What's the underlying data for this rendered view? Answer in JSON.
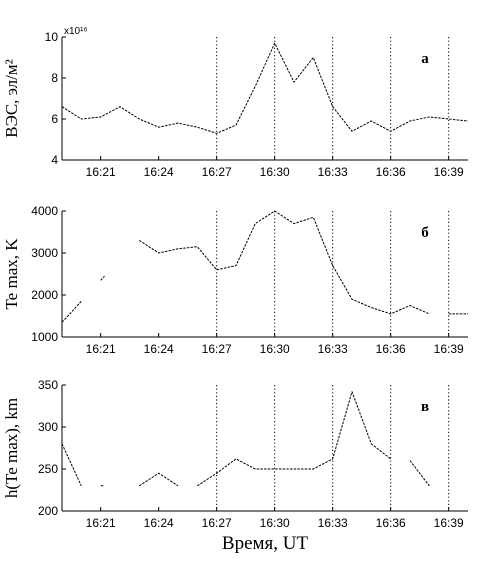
{
  "chart_data": [
    {
      "type": "line",
      "panel_label": "а",
      "ylabel": "ВЭС, эл/м²",
      "y_multiplier": "x10¹⁶",
      "ylim": [
        4,
        10
      ],
      "yticks": [
        4,
        6,
        8,
        10
      ],
      "xlim": [
        "16:19",
        "16:40"
      ],
      "xticks": [
        "16:21",
        "16:24",
        "16:27",
        "16:30",
        "16:33",
        "16:36",
        "16:39"
      ],
      "vlines": [
        "16:27",
        "16:30",
        "16:33",
        "16:36",
        "16:39"
      ],
      "segments": [
        [
          [
            "16:19",
            6.6
          ],
          [
            "16:20",
            6.0
          ],
          [
            "16:21",
            6.1
          ],
          [
            "16:22",
            6.6
          ],
          [
            "16:23",
            6.0
          ],
          [
            "16:24",
            5.6
          ],
          [
            "16:25",
            5.8
          ],
          [
            "16:26",
            5.6
          ],
          [
            "16:27",
            5.3
          ],
          [
            "16:28",
            5.7
          ],
          [
            "16:29",
            7.6
          ],
          [
            "16:30",
            9.7
          ],
          [
            "16:31",
            7.8
          ],
          [
            "16:32",
            9.0
          ],
          [
            "16:33",
            6.6
          ],
          [
            "16:34",
            5.4
          ],
          [
            "16:35",
            5.9
          ],
          [
            "16:36",
            5.4
          ],
          [
            "16:37",
            5.9
          ],
          [
            "16:38",
            6.1
          ],
          [
            "16:39",
            6.0
          ],
          [
            "16:40",
            5.9
          ]
        ]
      ]
    },
    {
      "type": "line",
      "panel_label": "б",
      "ylabel": "Te max, K",
      "ylim": [
        1000,
        4000
      ],
      "yticks": [
        1000,
        2000,
        3000,
        4000
      ],
      "xlim": [
        "16:19",
        "16:40"
      ],
      "xticks": [
        "16:21",
        "16:24",
        "16:27",
        "16:30",
        "16:33",
        "16:36",
        "16:39"
      ],
      "vlines": [
        "16:27",
        "16:30",
        "16:33",
        "16:36",
        "16:39"
      ],
      "segments": [
        [
          [
            "16:19",
            1350
          ],
          [
            "16:20",
            1850
          ]
        ],
        [
          [
            "16:21",
            2350
          ],
          [
            "16:21.2",
            2450
          ]
        ],
        [
          [
            "16:23",
            3300
          ],
          [
            "16:24",
            3000
          ],
          [
            "16:25",
            3100
          ],
          [
            "16:26",
            3150
          ],
          [
            "16:27",
            2600
          ],
          [
            "16:28",
            2700
          ],
          [
            "16:29",
            3700
          ],
          [
            "16:30",
            4000
          ],
          [
            "16:31",
            3700
          ],
          [
            "16:32",
            3850
          ],
          [
            "16:33",
            2700
          ],
          [
            "16:34",
            1900
          ],
          [
            "16:35",
            1700
          ],
          [
            "16:36",
            1550
          ],
          [
            "16:37",
            1750
          ],
          [
            "16:38",
            1550
          ]
        ],
        [
          [
            "16:39",
            1550
          ],
          [
            "16:40",
            1550
          ]
        ]
      ]
    },
    {
      "type": "line",
      "panel_label": "в",
      "ylabel": "h(Te max), km",
      "ylim": [
        200,
        350
      ],
      "yticks": [
        200,
        250,
        300,
        350
      ],
      "xlim": [
        "16:19",
        "16:40"
      ],
      "xticks": [
        "16:21",
        "16:24",
        "16:27",
        "16:30",
        "16:33",
        "16:36",
        "16:39"
      ],
      "vlines": [
        "16:27",
        "16:30",
        "16:33",
        "16:36",
        "16:39"
      ],
      "xlabel": "Время, UT",
      "segments": [
        [
          [
            "16:19",
            280
          ],
          [
            "16:20",
            230
          ]
        ],
        [
          [
            "16:21",
            230
          ],
          [
            "16:21.2",
            230
          ]
        ],
        [
          [
            "16:23",
            230
          ],
          [
            "16:24",
            245
          ],
          [
            "16:25",
            230
          ]
        ],
        [
          [
            "16:26",
            230
          ],
          [
            "16:27",
            245
          ],
          [
            "16:28",
            262
          ],
          [
            "16:29",
            250
          ],
          [
            "16:30",
            250
          ],
          [
            "16:31",
            250
          ],
          [
            "16:32",
            250
          ],
          [
            "16:33",
            262
          ],
          [
            "16:34",
            342
          ],
          [
            "16:35",
            280
          ],
          [
            "16:36",
            262
          ]
        ],
        [
          [
            "16:37",
            260
          ],
          [
            "16:38",
            230
          ]
        ]
      ]
    }
  ]
}
